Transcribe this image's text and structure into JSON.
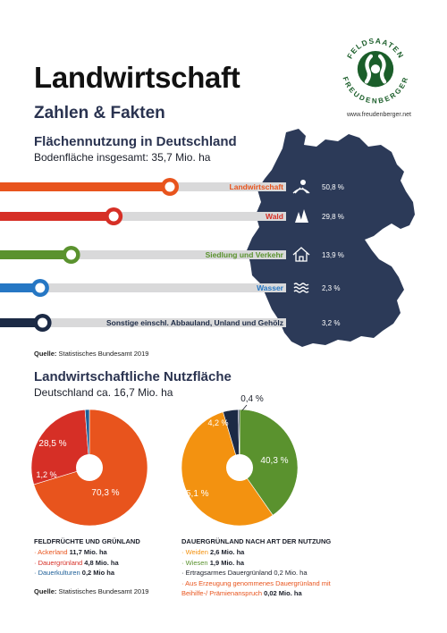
{
  "header": {
    "title": "Landwirtschaft",
    "subtitle": "Zahlen & Fakten",
    "logo_top": "FELDSAATEN",
    "logo_bottom": "FREUDENBERGER",
    "website": "www.freudenberger.net"
  },
  "colors": {
    "orange": "#e8541d",
    "red": "#d62f26",
    "green": "#5a922e",
    "blue": "#2677c4",
    "navy": "#1c2a45",
    "amber": "#f39210",
    "bar_track": "#d9d9da",
    "map": "#2c3a58"
  },
  "section1": {
    "title": "Flächennutzung in Deutschland",
    "subtitle": "Bodenfläche insgesamt: 35,7 Mio. ha",
    "source_label": "Quelle:",
    "source_text": " Statistisches Bundesamt 2019"
  },
  "section2": {
    "title": "Landwirtschaftliche Nutzfläche",
    "subtitle": "Deutschland ca. 16,7 Mio. ha"
  },
  "legend1": {
    "heading": "FELDFRÜCHTE UND GRÜNLAND",
    "items": [
      {
        "marker": "· ",
        "label": "Ackerland",
        "value": " 11,7 Mio. ha",
        "color": "#e8541d"
      },
      {
        "marker": "· ",
        "label": "Dauergrünland",
        "value": " 4,8 Mio. ha",
        "color": "#d62f26"
      },
      {
        "marker": "· ",
        "label": "Dauerkulturen",
        "value": " 0,2 Mio ha",
        "color": "#1d5f98"
      }
    ],
    "source_label": "Quelle:",
    "source_text": " Statistisches Bundesamt 2019"
  },
  "legend2": {
    "heading": "DAUERGRÜNLAND NACH ART DER NUTZUNG",
    "items": [
      {
        "marker": "· ",
        "label": "Weiden",
        "value": " 2,6 Mio. ha",
        "color": "#f39210"
      },
      {
        "marker": "· ",
        "label": "Wiesen",
        "value": " 1,9 Mio. ha",
        "color": "#5a922e"
      },
      {
        "marker": "· ",
        "label": "Ertragsarmes Dauergrünland 0,2 Mio. ha",
        "value": "",
        "color": "#1b1f2a"
      },
      {
        "marker": "· ",
        "label": "Aus Erzeugung genommenes Dauergrünland mit",
        "value": "",
        "color": "#e8541d"
      },
      {
        "marker": "  ",
        "label": "Beihilfe-/ Prämienanspruch",
        "value": " 0,02 Mio. ha",
        "color": "#e8541d"
      }
    ]
  },
  "chart_data": [
    {
      "type": "bar",
      "title": "Flächennutzung in Deutschland",
      "categories": [
        "Landwirtschaft",
        "Wald",
        "Siedlung und Verkehr",
        "Wasser",
        "Sonstige einschl. Abbauland, Unland und Gehölz"
      ],
      "values": [
        50.8,
        29.8,
        13.9,
        2.3,
        3.2
      ],
      "value_labels": [
        "50,8 %",
        "29,8 %",
        "13,9 %",
        "2,3 %",
        "3,2 %"
      ],
      "colors": [
        "#e8541d",
        "#d62f26",
        "#5a922e",
        "#2677c4",
        "#1c2a45"
      ],
      "icons": [
        "field-icon",
        "forest-icon",
        "house-icon",
        "water-icon",
        ""
      ],
      "unit": "%"
    },
    {
      "type": "pie",
      "title": "Landwirtschaftliche Nutzfläche",
      "categories": [
        "Ackerland",
        "Dauergrünland",
        "Dauerkulturen"
      ],
      "values": [
        70.3,
        28.5,
        1.2
      ],
      "value_labels": [
        "70,3 %",
        "28,5 %",
        "1,2 %"
      ],
      "colors": [
        "#e8541d",
        "#d62f26",
        "#1d5f98"
      ]
    },
    {
      "type": "pie",
      "title": "Dauergrünland nach Art der Nutzung",
      "categories": [
        "Wiesen",
        "Weiden",
        "Ertragsarmes Dauergrünland",
        "Aus Erzeugung genommenes Dauergrünland"
      ],
      "values": [
        40.3,
        55.1,
        4.2,
        0.4
      ],
      "value_labels": [
        "40,3 %",
        "55,1 %",
        "4,2 %",
        "0,4 %"
      ],
      "colors": [
        "#5a922e",
        "#f39210",
        "#1c2a45",
        "#2c3a58"
      ]
    }
  ]
}
